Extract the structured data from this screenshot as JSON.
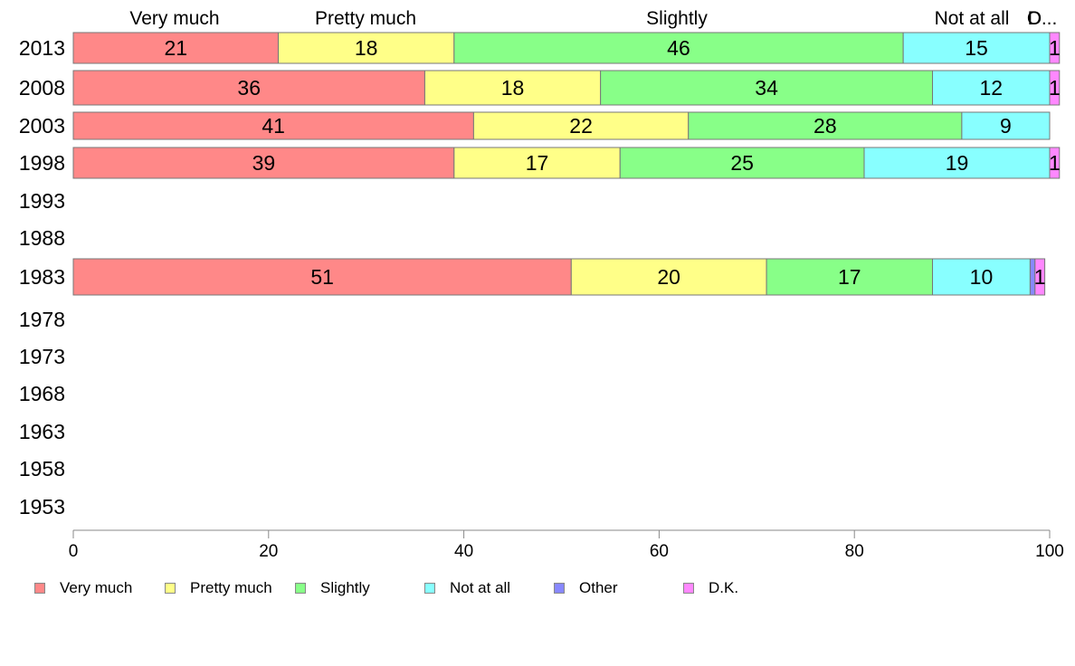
{
  "chart_data": {
    "type": "bar",
    "orientation": "horizontal",
    "stacked": true,
    "categories": [
      "2013",
      "2008",
      "2003",
      "1998",
      "1993",
      "1988",
      "1983",
      "1978",
      "1973",
      "1968",
      "1963",
      "1958",
      "1953"
    ],
    "series": [
      {
        "name": "Very much",
        "color": "#ff8888",
        "values": [
          21,
          36,
          41,
          39,
          null,
          null,
          51,
          null,
          null,
          null,
          null,
          null,
          null
        ]
      },
      {
        "name": "Pretty much",
        "color": "#ffff88",
        "values": [
          18,
          18,
          22,
          17,
          null,
          null,
          20,
          null,
          null,
          null,
          null,
          null,
          null
        ]
      },
      {
        "name": "Slightly",
        "color": "#88ff88",
        "values": [
          46,
          34,
          28,
          25,
          null,
          null,
          17,
          null,
          null,
          null,
          null,
          null,
          null
        ]
      },
      {
        "name": "Not at all",
        "color": "#88ffff",
        "values": [
          15,
          12,
          9,
          19,
          null,
          null,
          10,
          null,
          null,
          null,
          null,
          null,
          null
        ]
      },
      {
        "name": "Other",
        "color": "#8888ff",
        "values": [
          0,
          0,
          0,
          0,
          null,
          null,
          0.5,
          null,
          null,
          null,
          null,
          null,
          null
        ]
      },
      {
        "name": "D.K.",
        "color": "#ff88ff",
        "values": [
          1,
          1,
          0,
          1,
          null,
          null,
          1,
          null,
          null,
          null,
          null,
          null,
          null
        ]
      }
    ],
    "top_labels": [
      "Very much",
      "Pretty much",
      "Slightly",
      "Not at all",
      "O",
      "D..."
    ],
    "xlim": [
      0,
      100
    ],
    "xticks": [
      0,
      20,
      40,
      60,
      80,
      100
    ],
    "title": "",
    "xlabel": "",
    "ylabel": "",
    "grid": false,
    "legend_position": "bottom-left"
  }
}
